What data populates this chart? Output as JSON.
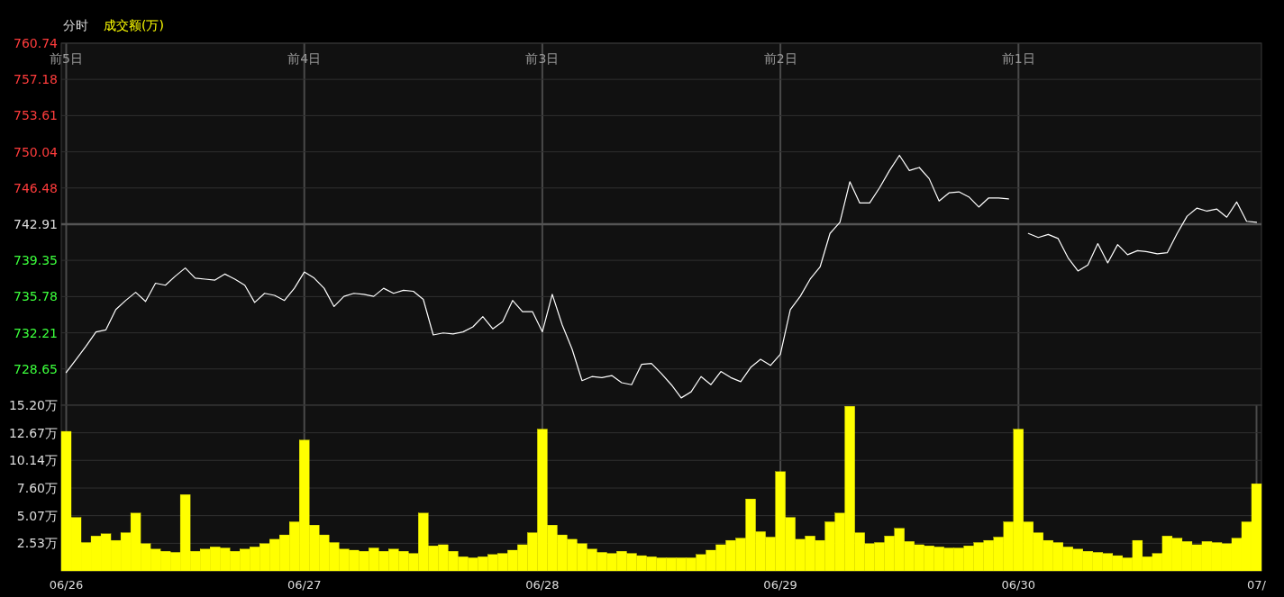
{
  "chart_data": [
    {
      "type": "line",
      "title": "分时",
      "subtitle": "成交额(万)",
      "ylim": [
        725.08,
        760.74
      ],
      "grid": true,
      "categories": [
        "前5日",
        null,
        null,
        null,
        null,
        null,
        null,
        null,
        null,
        null,
        null,
        null,
        null,
        null,
        null,
        null,
        null,
        null,
        null,
        null,
        null,
        null,
        null,
        null,
        "前4日",
        null,
        null,
        null,
        null,
        null,
        null,
        null,
        null,
        null,
        null,
        null,
        null,
        null,
        null,
        null,
        null,
        null,
        null,
        null,
        null,
        null,
        null,
        null,
        "前3日",
        null,
        null,
        null,
        null,
        null,
        null,
        null,
        null,
        null,
        null,
        null,
        null,
        null,
        null,
        null,
        null,
        null,
        null,
        null,
        null,
        null,
        null,
        null,
        "前2日",
        null,
        null,
        null,
        null,
        null,
        null,
        null,
        null,
        null,
        null,
        null,
        null,
        null,
        null,
        null,
        null,
        null,
        null,
        null,
        null,
        null,
        null,
        null,
        "前1日",
        null,
        null,
        null,
        null,
        null,
        null,
        null,
        null,
        null,
        null,
        null,
        null,
        null,
        null,
        null,
        null,
        null,
        null,
        null,
        null,
        null,
        null,
        null,
        null
      ],
      "yticks": [
        728.65,
        732.21,
        735.78,
        739.35,
        742.91,
        746.48,
        750.04,
        753.61,
        757.18,
        760.74
      ],
      "ref_lines": [
        {
          "axis": "y",
          "value": 742.91,
          "color": "#555555"
        }
      ],
      "series": [
        {
          "color": "#ffffff",
          "values": [
            728.3,
            729.6,
            730.9,
            732.3,
            732.5,
            734.5,
            735.4,
            736.2,
            735.3,
            737.1,
            736.9,
            737.8,
            738.6,
            737.6,
            737.5,
            737.4,
            738.0,
            737.5,
            736.9,
            735.2,
            736.1,
            735.9,
            735.4,
            736.6,
            738.2,
            737.6,
            736.6,
            734.8,
            735.8,
            736.1,
            736.0,
            735.8,
            736.6,
            736.1,
            736.4,
            736.3,
            735.5,
            732.0,
            732.2,
            732.1,
            732.3,
            732.8,
            733.8,
            732.6,
            733.3,
            735.4,
            734.3,
            734.3,
            732.3,
            736.0,
            733.0,
            730.6,
            727.5,
            727.9,
            727.8,
            728.0,
            727.3,
            727.1,
            729.1,
            729.2,
            728.2,
            727.1,
            725.8,
            726.4,
            727.9,
            727.1,
            728.4,
            727.8,
            727.4,
            728.8,
            729.6,
            729.0,
            730.1,
            734.5,
            735.8,
            737.5,
            738.7,
            742.0,
            743.1,
            747.1,
            745.0,
            745.0,
            746.5,
            748.2,
            749.7,
            748.2,
            748.5,
            747.4,
            745.2,
            746.0,
            746.1,
            745.6,
            744.6,
            745.5,
            745.5,
            745.4,
            null,
            742.0,
            741.6,
            741.9,
            741.5,
            739.6,
            738.3,
            738.9,
            741.0,
            739.1,
            740.9,
            739.9,
            740.3,
            740.2,
            740.0,
            740.1,
            742.0,
            743.7,
            744.5,
            744.2,
            744.4,
            743.6,
            745.1,
            743.2,
            743.1
          ]
        }
      ]
    },
    {
      "type": "bar",
      "ylim": [
        0,
        15.2
      ],
      "grid": true,
      "categories": [
        "06/26",
        null,
        null,
        null,
        null,
        null,
        null,
        null,
        null,
        null,
        null,
        null,
        null,
        null,
        null,
        null,
        null,
        null,
        null,
        null,
        null,
        null,
        null,
        null,
        "06/27",
        null,
        null,
        null,
        null,
        null,
        null,
        null,
        null,
        null,
        null,
        null,
        null,
        null,
        null,
        null,
        null,
        null,
        null,
        null,
        null,
        null,
        null,
        null,
        "06/28",
        null,
        null,
        null,
        null,
        null,
        null,
        null,
        null,
        null,
        null,
        null,
        null,
        null,
        null,
        null,
        null,
        null,
        null,
        null,
        null,
        null,
        null,
        null,
        "06/29",
        null,
        null,
        null,
        null,
        null,
        null,
        null,
        null,
        null,
        null,
        null,
        null,
        null,
        null,
        null,
        null,
        null,
        null,
        null,
        null,
        null,
        null,
        null,
        "06/30",
        null,
        null,
        null,
        null,
        null,
        null,
        null,
        null,
        null,
        null,
        null,
        null,
        null,
        null,
        null,
        null,
        null,
        null,
        null,
        null,
        null,
        null,
        null,
        "07/"
      ],
      "yticks": [
        {
          "value": 2.53,
          "label": "2.53万"
        },
        {
          "value": 5.07,
          "label": "5.07万"
        },
        {
          "value": 7.6,
          "label": "7.60万"
        },
        {
          "value": 10.14,
          "label": "10.14万"
        },
        {
          "value": 12.67,
          "label": "12.67万"
        },
        {
          "value": 15.2,
          "label": "15.20万"
        }
      ],
      "series": [
        {
          "color": "#ffff00",
          "values": [
            12.8,
            4.9,
            2.6,
            3.2,
            3.4,
            2.8,
            3.5,
            5.3,
            2.5,
            2.0,
            1.8,
            1.7,
            7.0,
            1.8,
            2.0,
            2.2,
            2.1,
            1.8,
            2.0,
            2.2,
            2.5,
            2.9,
            3.3,
            4.5,
            12.0,
            4.2,
            3.3,
            2.6,
            2.0,
            1.9,
            1.8,
            2.1,
            1.8,
            2.0,
            1.8,
            1.6,
            5.3,
            2.3,
            2.4,
            1.8,
            1.3,
            1.2,
            1.3,
            1.5,
            1.6,
            1.9,
            2.4,
            3.5,
            13.0,
            4.2,
            3.3,
            2.9,
            2.5,
            2.0,
            1.7,
            1.6,
            1.8,
            1.6,
            1.4,
            1.3,
            1.2,
            1.2,
            1.2,
            1.2,
            1.5,
            1.9,
            2.4,
            2.8,
            3.0,
            6.6,
            3.6,
            3.1,
            9.1,
            4.9,
            2.9,
            3.2,
            2.8,
            4.5,
            5.3,
            15.1,
            3.5,
            2.5,
            2.6,
            3.2,
            3.9,
            2.7,
            2.4,
            2.3,
            2.2,
            2.1,
            2.1,
            2.3,
            2.6,
            2.8,
            3.1,
            4.5,
            13.0,
            4.5,
            3.5,
            2.8,
            2.6,
            2.2,
            2.0,
            1.8,
            1.7,
            1.6,
            1.4,
            1.2,
            2.8,
            1.3,
            1.6,
            3.2,
            3.0,
            2.7,
            2.4,
            2.7,
            2.6,
            2.5,
            3.0,
            4.5,
            8.0
          ]
        }
      ]
    }
  ]
}
